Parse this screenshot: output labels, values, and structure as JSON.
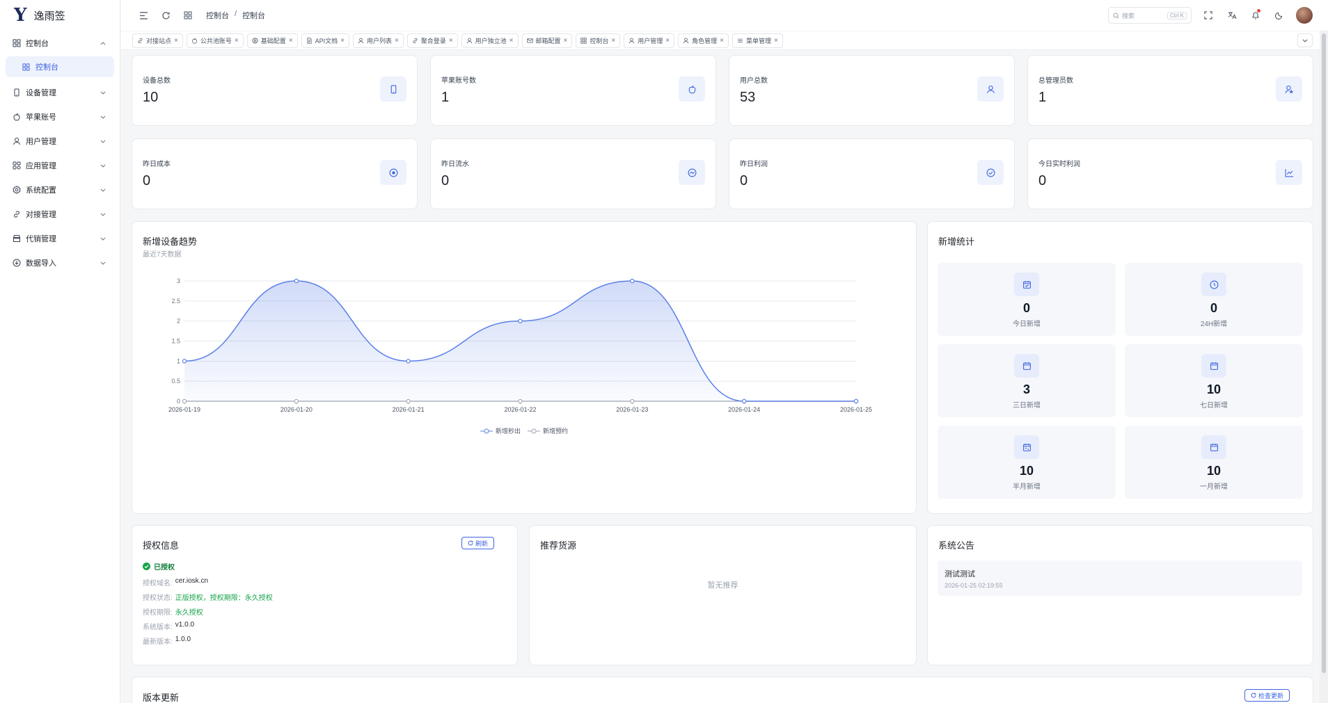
{
  "app": {
    "logo_mark": "Y",
    "name": "逸雨签"
  },
  "sidebar": {
    "items": [
      {
        "label": "控制台",
        "icon": "grid-icon",
        "chevron": "^"
      },
      {
        "label": "设备管理",
        "icon": "phone-icon",
        "chevron": "v"
      },
      {
        "label": "苹果账号",
        "icon": "apple-icon",
        "chevron": "v"
      },
      {
        "label": "用户管理",
        "icon": "user-icon",
        "chevron": "v"
      },
      {
        "label": "应用管理",
        "icon": "apps-icon",
        "chevron": "v"
      },
      {
        "label": "系统配置",
        "icon": "gear-icon",
        "chevron": "v"
      },
      {
        "label": "对接管理",
        "icon": "link-icon",
        "chevron": "v"
      },
      {
        "label": "代销管理",
        "icon": "store-icon",
        "chevron": "v"
      },
      {
        "label": "数据导入",
        "icon": "import-icon",
        "chevron": "v"
      }
    ],
    "active_sub": "控制台"
  },
  "header": {
    "breadcrumb": [
      "控制台",
      "控制台"
    ],
    "breadcrumb_sep": "/",
    "search_placeholder": "搜索",
    "search_kbd": "Ctrl K"
  },
  "tabs": [
    {
      "label": "对接站点",
      "icon": "link-icon"
    },
    {
      "label": "公共池账号",
      "icon": "apple-icon"
    },
    {
      "label": "基础配置",
      "icon": "gear-icon"
    },
    {
      "label": "API文档",
      "icon": "doc-icon"
    },
    {
      "label": "用户列表",
      "icon": "user-icon"
    },
    {
      "label": "聚合登录",
      "icon": "link-icon"
    },
    {
      "label": "用户独立池",
      "icon": "user-icon"
    },
    {
      "label": "邮箱配置",
      "icon": "mail-icon"
    },
    {
      "label": "控制台",
      "icon": "grid-icon"
    },
    {
      "label": "用户管理",
      "icon": "user-icon"
    },
    {
      "label": "角色管理",
      "icon": "user-icon"
    },
    {
      "label": "菜单管理",
      "icon": "menu-icon"
    }
  ],
  "tab_close": "×",
  "stats_row1": [
    {
      "title": "设备总数",
      "value": "10",
      "icon": "phone-icon"
    },
    {
      "title": "苹果账号数",
      "value": "1",
      "icon": "apple-icon"
    },
    {
      "title": "用户总数",
      "value": "53",
      "icon": "user-icon"
    },
    {
      "title": "总管理员数",
      "value": "1",
      "icon": "admin-icon"
    }
  ],
  "stats_row2": [
    {
      "title": "昨日成本",
      "value": "0",
      "icon": "coin-icon"
    },
    {
      "title": "昨日流水",
      "value": "0",
      "icon": "flow-icon"
    },
    {
      "title": "昨日利润",
      "value": "0",
      "icon": "check-circle-icon"
    },
    {
      "title": "今日实时利润",
      "value": "0",
      "icon": "trend-icon"
    }
  ],
  "trend": {
    "title": "新增设备趋势",
    "subtitle": "最近7天数据",
    "legend": [
      "新增秒出",
      "新增预约"
    ]
  },
  "chart_data": {
    "type": "area",
    "title": "新增设备趋势",
    "x": [
      "2026-01-19",
      "2026-01-20",
      "2026-01-21",
      "2026-01-22",
      "2026-01-23",
      "2026-01-24",
      "2026-01-25"
    ],
    "yticks": [
      "0",
      "0.5",
      "1",
      "1.5",
      "2",
      "2.5",
      "3"
    ],
    "ylim": [
      0,
      3
    ],
    "series": [
      {
        "name": "新增秒出",
        "values": [
          1,
          3,
          1,
          2,
          3,
          0,
          0
        ],
        "color": "#5b7fe8"
      },
      {
        "name": "新增预约",
        "values": [
          0,
          0,
          0,
          0,
          0,
          0,
          0
        ],
        "color": "#9ca3af"
      }
    ],
    "grid": true,
    "legend": "bottom"
  },
  "new_stats": {
    "title": "新增统计",
    "tiles": [
      {
        "value": "0",
        "label": "今日新增",
        "icon": "calendar-check-icon"
      },
      {
        "value": "0",
        "label": "24H新增",
        "icon": "clock-icon"
      },
      {
        "value": "3",
        "label": "三日新增",
        "icon": "calendar-icon"
      },
      {
        "value": "10",
        "label": "七日新增",
        "icon": "calendar-icon"
      },
      {
        "value": "10",
        "label": "半月新增",
        "icon": "calendar-range-icon"
      },
      {
        "value": "10",
        "label": "一月新增",
        "icon": "calendar-icon"
      }
    ]
  },
  "license": {
    "title": "授权信息",
    "refresh": "刷新",
    "status_badge": "已授权",
    "rows": [
      {
        "k": "授权域名:",
        "v": "cer.iosk.cn",
        "green": false
      },
      {
        "k": "授权状态:",
        "v": "正版授权，授权期限：永久授权",
        "green": true
      },
      {
        "k": "授权期限:",
        "v": "永久授权",
        "green": true
      },
      {
        "k": "系统版本:",
        "v": "v1.0.0",
        "green": false
      },
      {
        "k": "最新版本:",
        "v": "1.0.0",
        "green": false
      }
    ]
  },
  "recommend": {
    "title": "推荐货源",
    "empty": "暂无推荐"
  },
  "notice": {
    "title": "系统公告",
    "item_title": "测试测试",
    "item_time": "2026-01-25 02:19:55"
  },
  "version": {
    "title": "版本更新",
    "check": "检查更新"
  }
}
